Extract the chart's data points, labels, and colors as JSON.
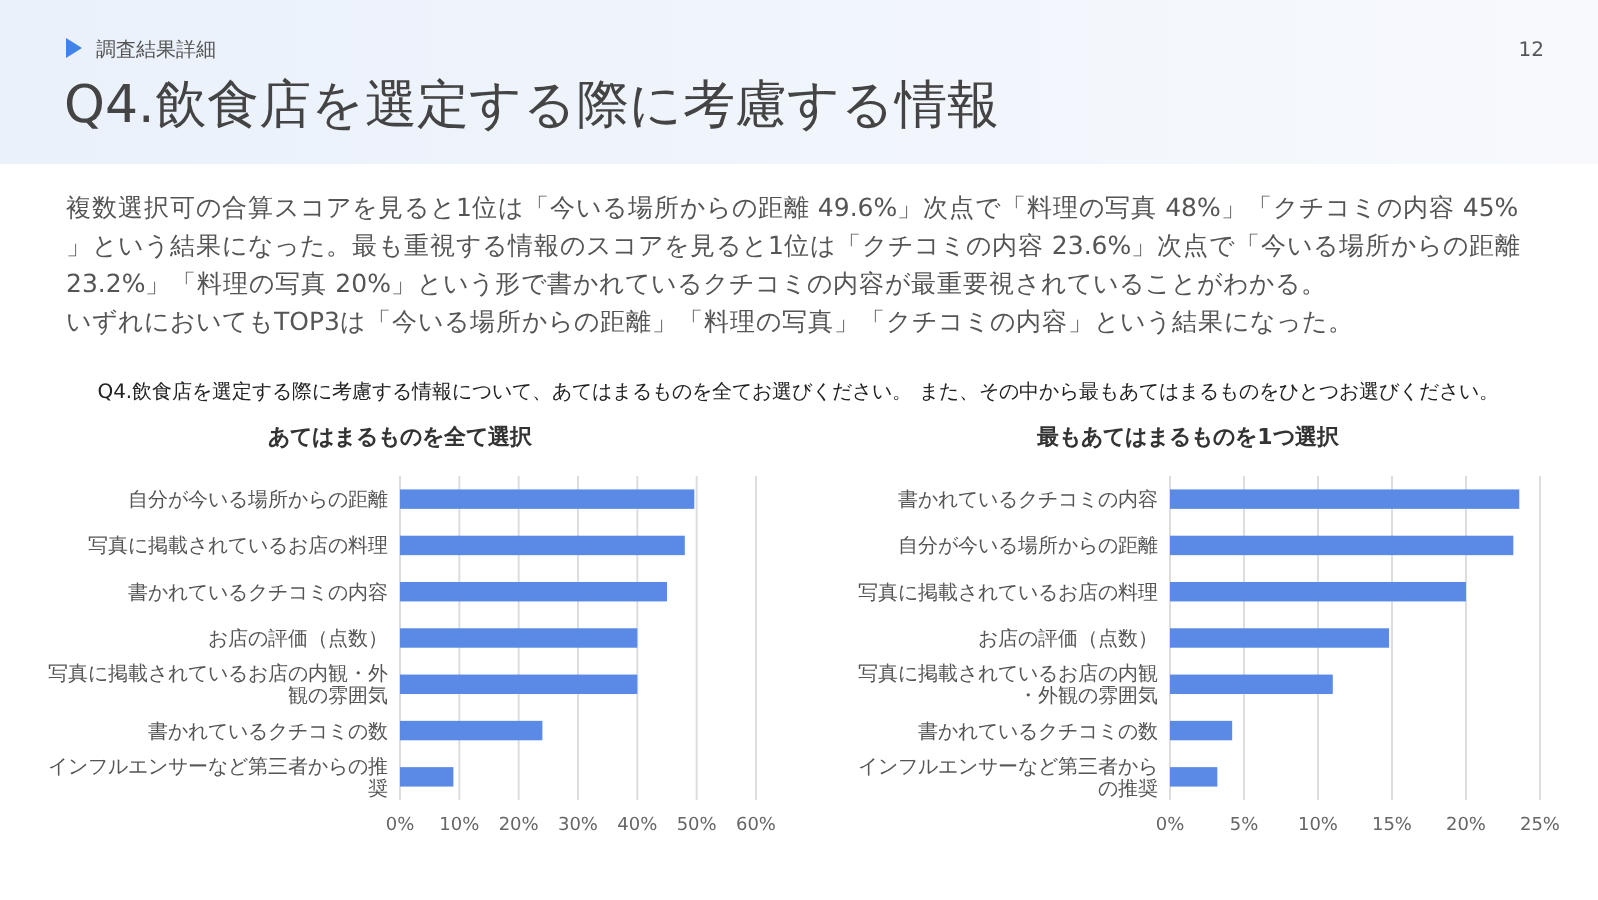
{
  "chart_data": [
    {
      "type": "other",
      "title": "Q4.飲食店を選定する際に考慮する情報",
      "subtitle": "調査結果詳細",
      "annotations": [
        "12",
        "複数選択可の合算スコアを見ると1位は「今いる場所からの距離 49.6%」次点で「料理の写真 48%」「クチコミの内容 45%」という結果になった。最も重視する情報のスコアを見ると1位は「クチコミの内容 23.6%」次点で「今いる場所からの距離 23.2%」「料理の写真 20%」という形で書かれているクチコミの内容が最重要視されていることがわかる。",
        "いずれにおいてもTOP3は「今いる場所からの距離」「料理の写真」「クチコミの内容」という結果になった。",
        "Q4.飲食店を選定する際に考慮する情報について、あてはまるものを全てお選びください。 また、その中から最もあてはまるものをひとつお選びください。"
      ]
    },
    {
      "type": "bar",
      "orientation": "horizontal",
      "title": "あてはまるものを全て選択",
      "categories": [
        "自分が今いる場所からの距離",
        "写真に掲載されているお店の料理",
        "書かれているクチコミの内容",
        "お店の評価（点数）",
        "写真に掲載されているお店の内観・外観の雰囲気",
        "書かれているクチコミの数",
        "インフルエンサーなど第三者からの推奨"
      ],
      "values": [
        49.6,
        48,
        45,
        40,
        40,
        24,
        9
      ],
      "color": "#5b8ae6",
      "grid": "x",
      "xlim": [
        0,
        60
      ],
      "xticks": [
        {
          "value": 0,
          "label": "0%"
        },
        {
          "value": 10,
          "label": "10%"
        },
        {
          "value": 20,
          "label": "20%"
        },
        {
          "value": 30,
          "label": "30%"
        },
        {
          "value": 40,
          "label": "40%"
        },
        {
          "value": 50,
          "label": "50%"
        },
        {
          "value": 60,
          "label": "60%"
        }
      ]
    },
    {
      "type": "bar",
      "orientation": "horizontal",
      "title": "最もあてはまるものを1つ選択",
      "categories": [
        "書かれているクチコミの内容",
        "自分が今いる場所からの距離",
        "写真に掲載されているお店の料理",
        "お店の評価（点数）",
        "写真に掲載されているお店の内観・外観の雰囲気",
        "書かれているクチコミの数",
        "インフルエンサーなど第三者からの推奨"
      ],
      "values": [
        23.6,
        23.2,
        20,
        14.8,
        11,
        4.2,
        3.2
      ],
      "color": "#5b8ae6",
      "grid": "x",
      "xlim": [
        0,
        25
      ],
      "xticks": [
        {
          "value": 0,
          "label": "0%"
        },
        {
          "value": 5,
          "label": "5%"
        },
        {
          "value": 10,
          "label": "10%"
        },
        {
          "value": 15,
          "label": "15%"
        },
        {
          "value": 20,
          "label": "20%"
        },
        {
          "value": 25,
          "label": "25%"
        }
      ]
    }
  ]
}
